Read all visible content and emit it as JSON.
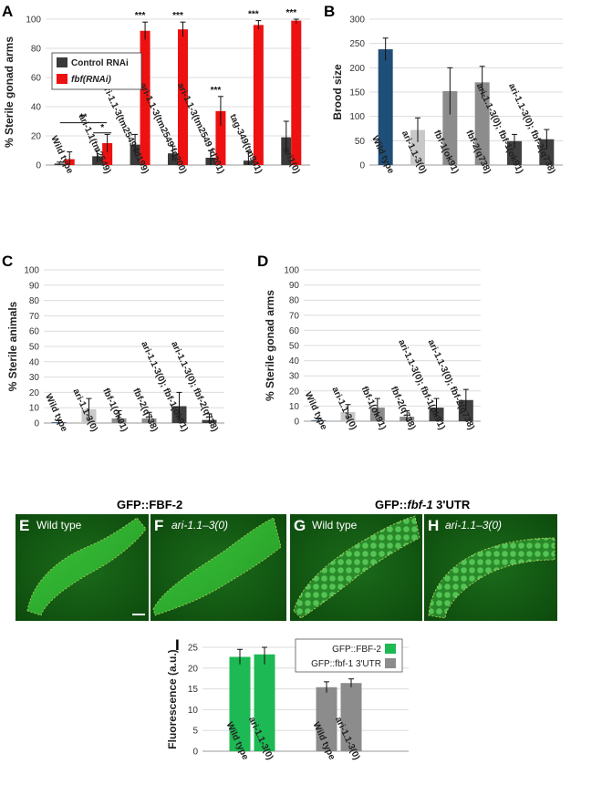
{
  "panels": {
    "A": "A",
    "B": "B",
    "C": "C",
    "D": "D",
    "E": "E",
    "F": "F",
    "G": "G",
    "H": "H",
    "I": "I"
  },
  "image_panels": {
    "title_left": "GFP::FBF-2",
    "title_right_prefix": "GFP::",
    "title_right_gene": "fbf-1",
    "title_right_suffix": " 3'UTR",
    "E_label": "Wild type",
    "F_label": "ari-1.1–3(0)",
    "G_label": "Wild type",
    "H_label": "ari-1.1–3(0)"
  },
  "chart_data": [
    {
      "panel": "A",
      "type": "bar",
      "ylabel": "% Sterile gonad arms",
      "ylim": [
        0,
        100
      ],
      "yticks": [
        0,
        20,
        40,
        60,
        80,
        100
      ],
      "categories": [
        "Wild type",
        "ari-1.1(tm2549)",
        "ari-1.1-3(tm2549 fd199)",
        "ari-1.1-3(tm2549 fd200)",
        "ari-1.1-3(tm2549 fd201)",
        "tag-349(tm941)",
        "ari1(0)"
      ],
      "series": [
        {
          "name": "Control RNAi",
          "color": "#3a3a3a",
          "values": [
            1,
            6,
            14,
            8,
            5,
            3,
            19
          ],
          "errors": [
            1,
            4,
            7,
            5,
            5,
            6,
            11
          ]
        },
        {
          "name": "fbf(RNAi)",
          "color": "#ee1111",
          "values": [
            4,
            15,
            92,
            93,
            37,
            96,
            99
          ],
          "errors": [
            5,
            6,
            6,
            5,
            10,
            3,
            2
          ]
        }
      ],
      "significance": [
        {
          "label": "**",
          "from": 0,
          "to": 1
        },
        {
          "label": "*",
          "category": 1
        },
        {
          "label": "***",
          "category": 2
        },
        {
          "label": "***",
          "category": 3
        },
        {
          "label": "***",
          "category": 4
        },
        {
          "label": "***",
          "category": 5
        },
        {
          "label": "***",
          "category": 6
        }
      ]
    },
    {
      "panel": "B",
      "type": "bar",
      "ylabel": "Brood size",
      "ylim": [
        0,
        300
      ],
      "yticks": [
        0,
        50,
        100,
        150,
        200,
        250,
        300
      ],
      "categories": [
        "Wild type",
        "ari-1.1-3(0)",
        "fbf-1(ok91)",
        "fbf-2(q738)",
        "ari-1.1-3(0); fbf-1(ok91)",
        "ari-1.1-3(0); fbf-2(q738)"
      ],
      "values": [
        238,
        72,
        152,
        170,
        49,
        53
      ],
      "errors": [
        23,
        25,
        48,
        33,
        14,
        20
      ],
      "colors": [
        "#1f4e79",
        "#c8c8c8",
        "#8c8c8c",
        "#8c8c8c",
        "#404040",
        "#404040"
      ]
    },
    {
      "panel": "C",
      "type": "bar",
      "ylabel": "% Sterile animals",
      "ylim": [
        0,
        100
      ],
      "yticks": [
        0,
        10,
        20,
        30,
        40,
        50,
        60,
        70,
        80,
        90,
        100
      ],
      "categories": [
        "Wild type",
        "ari-1.1-3(0)",
        "fbf-1(ok91)",
        "fbf-2(q738)",
        "ari-1.1-3(0); fbf-1(ok91)",
        "ari-1.1-3(0); fbf-2(q738)"
      ],
      "values": [
        0.5,
        9,
        3,
        3,
        11,
        2
      ],
      "errors": [
        1,
        7,
        5,
        4,
        9,
        4
      ],
      "colors": [
        "#1f4e79",
        "#c8c8c8",
        "#8c8c8c",
        "#8c8c8c",
        "#404040",
        "#404040"
      ]
    },
    {
      "panel": "D",
      "type": "bar",
      "ylabel": "% Sterile gonad arms",
      "ylim": [
        0,
        100
      ],
      "yticks": [
        0,
        10,
        20,
        30,
        40,
        50,
        60,
        70,
        80,
        90,
        100
      ],
      "categories": [
        "Wild type",
        "ari-1.1-3(0)",
        "fbf-1(ok91)",
        "fbf-2(q738)",
        "ari-1.1-3(0); fbf-1(ok91)",
        "ari-1.1-3(0); fbf-2(q738)"
      ],
      "values": [
        0.5,
        6,
        9,
        3,
        9,
        14
      ],
      "errors": [
        1,
        5,
        6,
        4,
        6,
        7
      ],
      "colors": [
        "#1f4e79",
        "#c8c8c8",
        "#8c8c8c",
        "#8c8c8c",
        "#404040",
        "#404040"
      ]
    },
    {
      "panel": "I",
      "type": "bar",
      "ylabel": "Fluorescence (a.u.)",
      "ylim": [
        0,
        25
      ],
      "yticks": [
        0,
        5,
        10,
        15,
        20,
        25
      ],
      "categories": [
        "Wild type",
        "ari-1.1-3(0)",
        "Wild type",
        "ari-1.1-3(0)"
      ],
      "values": [
        22.7,
        23.3,
        15.4,
        16.4
      ],
      "errors": [
        1.8,
        2.4,
        1.3,
        1.0
      ],
      "colors": [
        "#1db954",
        "#1db954",
        "#8c8c8c",
        "#8c8c8c"
      ],
      "series": [
        {
          "name": "GFP::FBF-2",
          "color": "#1db954"
        },
        {
          "name": "GFP::fbf-1 3'UTR",
          "color": "#8c8c8c"
        }
      ]
    }
  ]
}
